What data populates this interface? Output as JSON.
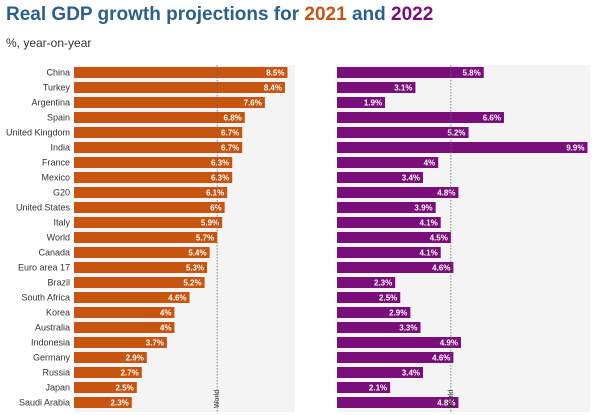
{
  "title": {
    "prefix": "Real GDP growth projections for ",
    "year1": "2021",
    "connector": " and ",
    "year2": "2022"
  },
  "subtitle": "%, year-on-year",
  "colors": {
    "series2021": "#c8550f",
    "series2022": "#7a0e7a",
    "title": "#2c5f8a"
  },
  "chart_data": {
    "type": "bar",
    "orientation": "horizontal",
    "title": "Real GDP growth projections for 2021 and 2022",
    "ylabel": "%, year-on-year",
    "categories": [
      "China",
      "Turkey",
      "Argentina",
      "Spain",
      "United Kingdom",
      "India",
      "France",
      "Mexico",
      "G20",
      "United States",
      "Italy",
      "World",
      "Canada",
      "Euro area 17",
      "Brazil",
      "South Africa",
      "Korea",
      "Australia",
      "Indonesia",
      "Germany",
      "Russia",
      "Japan",
      "Saudi Arabia"
    ],
    "series": [
      {
        "name": "2021",
        "values": [
          8.5,
          8.4,
          7.6,
          6.8,
          6.7,
          6.7,
          6.3,
          6.3,
          6.1,
          6,
          5.9,
          5.7,
          5.4,
          5.3,
          5.2,
          4.6,
          4,
          4,
          3.7,
          2.9,
          2.7,
          2.5,
          2.3
        ],
        "labels": [
          "8.5%",
          "8.4%",
          "7.6%",
          "6.8%",
          "6.7%",
          "6.7%",
          "6.3%",
          "6.3%",
          "6.1%",
          "6%",
          "5.9%",
          "5.7%",
          "5.4%",
          "5.3%",
          "5.2%",
          "4.6%",
          "4%",
          "4%",
          "3.7%",
          "2.9%",
          "2.7%",
          "2.5%",
          "2.3%"
        ],
        "xlim": [
          0,
          8.8
        ],
        "reference": {
          "label": "World",
          "value": 5.7
        }
      },
      {
        "name": "2022",
        "values": [
          5.8,
          3.1,
          1.9,
          6.6,
          5.2,
          9.9,
          4,
          3.4,
          4.8,
          3.9,
          4.1,
          4.5,
          4.1,
          4.6,
          2.3,
          2.5,
          2.9,
          3.3,
          4.9,
          4.6,
          3.4,
          2.1,
          4.8
        ],
        "labels": [
          "5.8%",
          "3.1%",
          "1.9%",
          "6.6%",
          "5.2%",
          "9.9%",
          "4%",
          "3.4%",
          "4.8%",
          "3.9%",
          "4.1%",
          "4.5%",
          "4.1%",
          "4.6%",
          "2.3%",
          "2.5%",
          "2.9%",
          "3.3%",
          "4.9%",
          "4.6%",
          "3.4%",
          "2.1%",
          "4.8%"
        ],
        "xlim": [
          0,
          10
        ],
        "reference": {
          "label": "World",
          "value": 4.5
        }
      }
    ]
  }
}
